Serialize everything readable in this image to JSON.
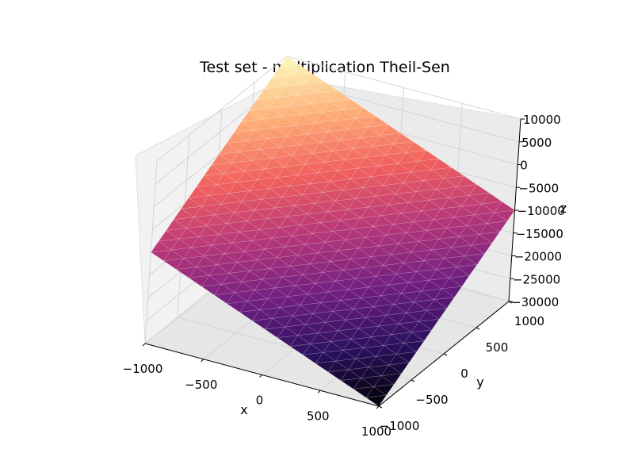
{
  "chart_data": {
    "type": "surface3d",
    "title": "Test set - multiplication Theil-Sen",
    "xlabel": "x",
    "ylabel": "y",
    "zlabel": "z",
    "xlim": [
      -1000,
      1000
    ],
    "ylim": [
      -1000,
      1000
    ],
    "zlim": [
      -30000,
      10000
    ],
    "grid": true,
    "x_ticks": [
      {
        "value": -1000,
        "label": "−1000"
      },
      {
        "value": -500,
        "label": "−500"
      },
      {
        "value": 0,
        "label": "0"
      },
      {
        "value": 500,
        "label": "500"
      },
      {
        "value": 1000,
        "label": "1000"
      }
    ],
    "y_ticks": [
      {
        "value": -1000,
        "label": "−1000"
      },
      {
        "value": -500,
        "label": "−500"
      },
      {
        "value": 0,
        "label": "0"
      },
      {
        "value": 500,
        "label": "500"
      },
      {
        "value": 1000,
        "label": "1000"
      }
    ],
    "z_ticks": [
      {
        "value": 10000,
        "label": "10000"
      },
      {
        "value": 5000,
        "label": "5000"
      },
      {
        "value": 0,
        "label": "0"
      },
      {
        "value": -5000,
        "label": "−5000"
      },
      {
        "value": -10000,
        "label": "−10000"
      },
      {
        "value": -15000,
        "label": "−15000"
      },
      {
        "value": -20000,
        "label": "−20000"
      },
      {
        "value": -25000,
        "label": "−25000"
      },
      {
        "value": -30000,
        "label": "−30000"
      }
    ],
    "surface_corners": [
      {
        "x": -1000,
        "y": -1000,
        "z": -10000
      },
      {
        "x": 1000,
        "y": -1000,
        "z": -30000
      },
      {
        "x": 1000,
        "y": 1000,
        "z": -10000
      },
      {
        "x": -1000,
        "y": 1000,
        "z": 10000
      }
    ],
    "colormap": [
      "#000004",
      "#2c115f",
      "#721f81",
      "#b73779",
      "#f1605d",
      "#feb078",
      "#fcfdbf"
    ]
  }
}
